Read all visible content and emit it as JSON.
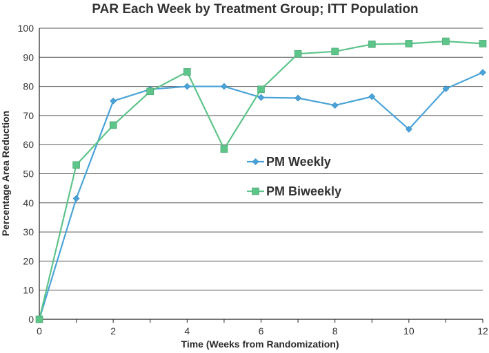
{
  "chart_data": {
    "type": "line",
    "title": "PAR Each Week by Treatment Group; ITT Population",
    "xlabel": "Time (Weeks from Randomization)",
    "ylabel": "Percentage Area Reduction",
    "xlim": [
      0,
      12
    ],
    "ylim": [
      0,
      100
    ],
    "xticks": [
      0,
      2,
      4,
      6,
      8,
      10,
      12
    ],
    "yticks": [
      0,
      10,
      20,
      30,
      40,
      50,
      60,
      70,
      80,
      90,
      100
    ],
    "grid": "horizontal",
    "legend_position": "center-right",
    "series": [
      {
        "name": "PM Weekly",
        "color": "#4aa3d8",
        "marker": "diamond",
        "x": [
          0,
          1,
          2,
          3,
          4,
          5,
          6,
          7,
          8,
          9,
          10,
          11,
          12
        ],
        "values": [
          0,
          41.5,
          75,
          79,
          80,
          80,
          76.2,
          76,
          73.5,
          76.5,
          65.3,
          79.2,
          84.8
        ]
      },
      {
        "name": "PM Biweekly",
        "color": "#5dc48a",
        "marker": "square",
        "x": [
          0,
          1,
          2,
          3,
          4,
          5,
          6,
          7,
          8,
          9,
          10,
          11,
          12
        ],
        "values": [
          0,
          53,
          66.7,
          78.3,
          85,
          58.5,
          79,
          91.2,
          92,
          94.5,
          94.7,
          95.5,
          94.7
        ]
      }
    ]
  }
}
